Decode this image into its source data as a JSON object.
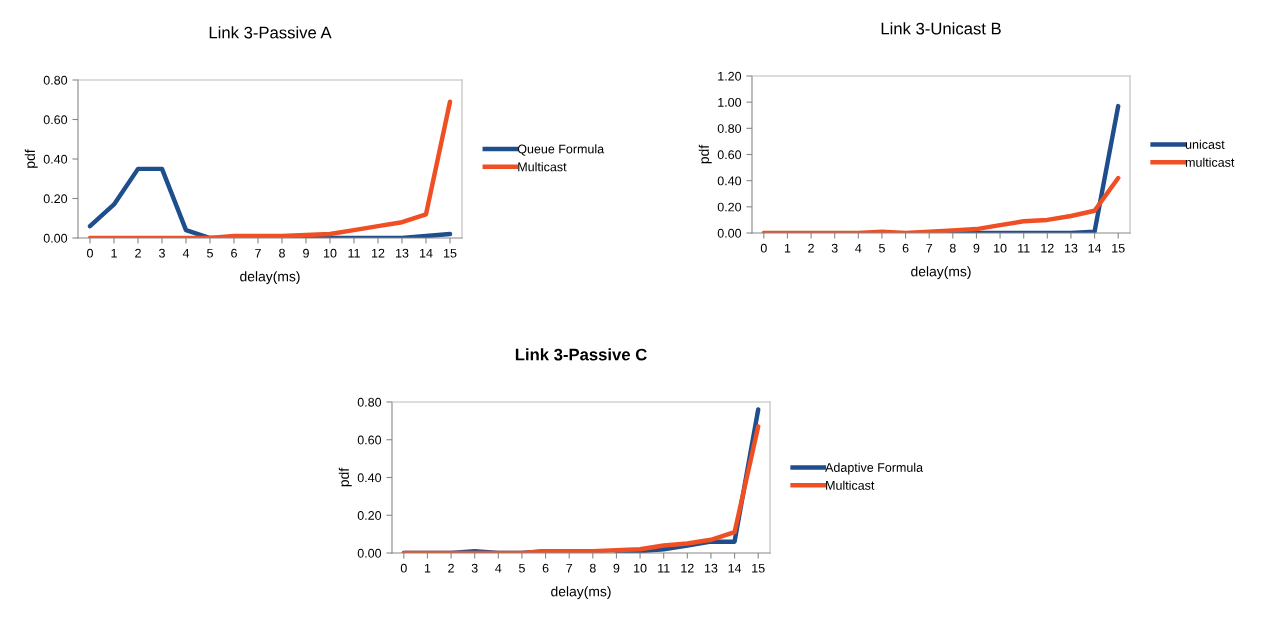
{
  "chart_data": [
    {
      "type": "line",
      "title": "Link 3-Passive A",
      "xlabel": "delay(ms)",
      "ylabel": "pdf",
      "categories": [
        "0",
        "1",
        "2",
        "3",
        "4",
        "5",
        "6",
        "7",
        "8",
        "9",
        "10",
        "11",
        "12",
        "13",
        "14",
        "15"
      ],
      "ylim": [
        0,
        0.8
      ],
      "yticks": [
        {
          "value": 0,
          "label": "0.00"
        },
        {
          "value": 0.2,
          "label": "0.20"
        },
        {
          "value": 0.4,
          "label": "0.40"
        },
        {
          "value": 0.6,
          "label": "0.60"
        },
        {
          "value": 0.8,
          "label": "0.80"
        }
      ],
      "legend": "right",
      "grid": false,
      "series": [
        {
          "name": "Queue Formula",
          "color": "#1f4e8c",
          "values": [
            0.06,
            0.17,
            0.35,
            0.35,
            0.04,
            0.0,
            0,
            0,
            0,
            0,
            0,
            0,
            0,
            0,
            0.01,
            0.02
          ]
        },
        {
          "name": "Multicast",
          "color": "#f04e23",
          "values": [
            0,
            0,
            0,
            0,
            0,
            0,
            0.01,
            0.01,
            0.01,
            0.015,
            0.02,
            0.04,
            0.06,
            0.08,
            0.12,
            0.69
          ]
        }
      ]
    },
    {
      "type": "line",
      "title": "Link 3-Unicast B",
      "xlabel": "delay(ms)",
      "ylabel": "pdf",
      "categories": [
        "0",
        "1",
        "2",
        "3",
        "4",
        "5",
        "6",
        "7",
        "8",
        "9",
        "10",
        "11",
        "12",
        "13",
        "14",
        "15"
      ],
      "ylim": [
        0,
        1.2
      ],
      "yticks": [
        {
          "value": 0,
          "label": "0.00"
        },
        {
          "value": 0.2,
          "label": "0.20"
        },
        {
          "value": 0.4,
          "label": "0.40"
        },
        {
          "value": 0.6,
          "label": "0.60"
        },
        {
          "value": 0.8,
          "label": "0.80"
        },
        {
          "value": 1.0,
          "label": "1.00"
        },
        {
          "value": 1.2,
          "label": "1.20"
        }
      ],
      "legend": "right",
      "grid": false,
      "series": [
        {
          "name": "unicast",
          "color": "#1f4e8c",
          "values": [
            null,
            null,
            null,
            null,
            null,
            null,
            null,
            0,
            0,
            0,
            0,
            0,
            0,
            0,
            0.01,
            0.97
          ]
        },
        {
          "name": "multicast",
          "color": "#f04e23",
          "values": [
            0,
            0,
            0,
            0,
            0,
            0.01,
            0,
            0.01,
            0.02,
            0.03,
            0.06,
            0.09,
            0.1,
            0.13,
            0.17,
            0.42
          ]
        }
      ]
    },
    {
      "type": "line",
      "title": "Link 3-Passive C",
      "xlabel": "delay(ms)",
      "ylabel": "pdf",
      "categories": [
        "0",
        "1",
        "2",
        "3",
        "4",
        "5",
        "6",
        "7",
        "8",
        "9",
        "10",
        "11",
        "12",
        "13",
        "14",
        "15"
      ],
      "ylim": [
        0,
        0.8
      ],
      "yticks": [
        {
          "value": 0,
          "label": "0.00"
        },
        {
          "value": 0.2,
          "label": "0.20"
        },
        {
          "value": 0.4,
          "label": "0.40"
        },
        {
          "value": 0.6,
          "label": "0.60"
        },
        {
          "value": 0.8,
          "label": "0.80"
        }
      ],
      "legend": "right",
      "grid": false,
      "series": [
        {
          "name": "Adaptive Formula",
          "color": "#1f4e8c",
          "values": [
            0,
            0,
            0,
            0.01,
            0,
            0,
            0.01,
            null,
            null,
            0.01,
            0.01,
            0.02,
            0.04,
            0.06,
            0.06,
            0.76
          ]
        },
        {
          "name": "Multicast",
          "color": "#f04e23",
          "values": [
            0,
            0,
            0,
            0,
            0,
            0,
            0.01,
            0.01,
            0.01,
            0.015,
            0.02,
            0.04,
            0.05,
            0.07,
            0.11,
            0.67
          ]
        }
      ]
    }
  ]
}
